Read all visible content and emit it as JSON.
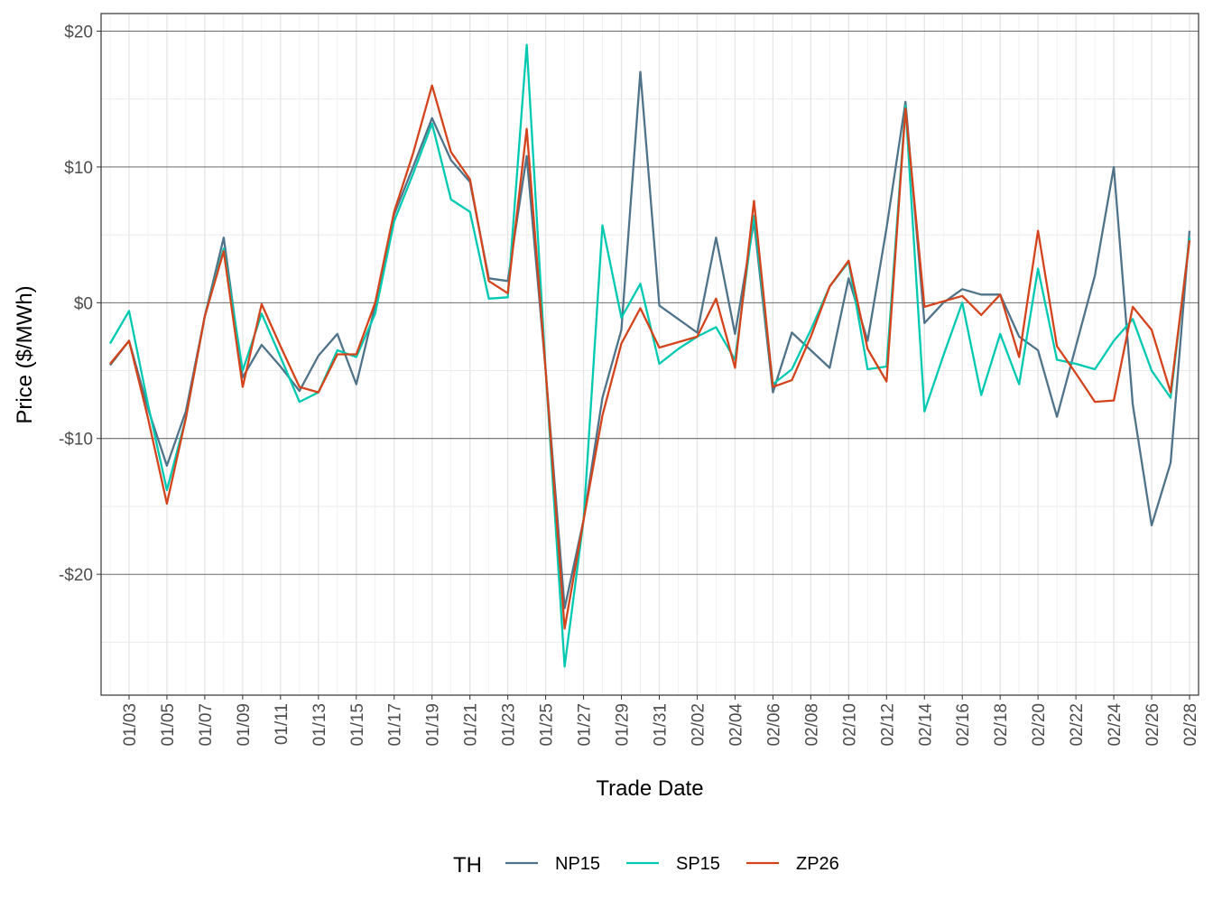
{
  "chart_data": {
    "type": "line",
    "title": "",
    "xlabel": "Trade Date",
    "ylabel": "Price ($/MWh)",
    "ylim": [
      -28.9,
      21.3
    ],
    "y_ticks": [
      20,
      10,
      0,
      -10,
      -20
    ],
    "y_tick_labels": [
      "$20",
      "$10",
      "$0",
      "-$10",
      "-$20"
    ],
    "grid": true,
    "legend": {
      "title": "TH",
      "position": "bottom"
    },
    "x": [
      "01/02",
      "01/03",
      "01/04",
      "01/05",
      "01/06",
      "01/07",
      "01/08",
      "01/09",
      "01/10",
      "01/11",
      "01/12",
      "01/13",
      "01/14",
      "01/15",
      "01/16",
      "01/17",
      "01/18",
      "01/19",
      "01/20",
      "01/21",
      "01/22",
      "01/23",
      "01/24",
      "01/25",
      "01/26",
      "01/27",
      "01/28",
      "01/29",
      "01/30",
      "01/31",
      "02/01",
      "02/02",
      "02/03",
      "02/04",
      "02/05",
      "02/06",
      "02/07",
      "02/08",
      "02/09",
      "02/10",
      "02/11",
      "02/12",
      "02/13",
      "02/14",
      "02/15",
      "02/16",
      "02/17",
      "02/18",
      "02/19",
      "02/20",
      "02/21",
      "02/22",
      "02/23",
      "02/24",
      "02/25",
      "02/26",
      "02/27",
      "02/28"
    ],
    "x_tick_labels": [
      "01/03",
      "01/05",
      "01/07",
      "01/09",
      "01/11",
      "01/13",
      "01/15",
      "01/17",
      "01/19",
      "01/21",
      "01/23",
      "01/25",
      "01/27",
      "01/29",
      "01/31",
      "02/02",
      "02/04",
      "02/06",
      "02/08",
      "02/10",
      "02/12",
      "02/14",
      "02/16",
      "02/18",
      "02/20",
      "02/22",
      "02/24",
      "02/26",
      "02/28"
    ],
    "series": [
      {
        "name": "NP15",
        "color": "#4f7388",
        "values": [
          -4.6,
          -2.8,
          -7.8,
          -12.0,
          -8.0,
          -1.0,
          4.8,
          -5.5,
          -3.1,
          -4.7,
          -6.5,
          -3.9,
          -2.3,
          -6.0,
          -0.2,
          6.5,
          10.0,
          13.6,
          10.5,
          8.9,
          1.8,
          1.6,
          10.8,
          -5.0,
          -22.5,
          -16.0,
          -7.0,
          -2.0,
          17.0,
          -0.2,
          -1.2,
          -2.2,
          4.8,
          -2.3,
          6.0,
          -6.6,
          -2.2,
          -3.5,
          -4.8,
          1.8,
          -2.8,
          5.5,
          14.8,
          -1.5,
          0.0,
          1.0,
          0.6,
          0.6,
          -2.5,
          -3.5,
          -8.4,
          -3.2,
          2.0,
          10.0,
          -7.5,
          -16.4,
          -11.8,
          5.3
        ]
      },
      {
        "name": "SP15",
        "color": "#00c9b1",
        "values": [
          -3.0,
          -0.6,
          -7.5,
          -13.8,
          -8.5,
          -1.0,
          4.0,
          -5.0,
          -0.8,
          -4.0,
          -7.3,
          -6.6,
          -3.5,
          -4.0,
          -0.8,
          6.0,
          9.5,
          13.2,
          7.6,
          6.7,
          0.3,
          0.4,
          19.0,
          -5.0,
          -26.8,
          -16.0,
          5.7,
          -1.1,
          1.4,
          -4.5,
          -3.4,
          -2.5,
          -1.8,
          -4.2,
          6.4,
          -6.0,
          -4.9,
          -2.0,
          1.2,
          3.0,
          -4.9,
          -4.7,
          14.5,
          -8.0,
          -3.9,
          0.0,
          -6.8,
          -2.3,
          -6.0,
          2.5,
          -4.2,
          -4.5,
          -4.9,
          -2.8,
          -1.2,
          -5.0,
          -7.0,
          4.8
        ]
      },
      {
        "name": "ZP26",
        "color": "#d4441c",
        "values": [
          -4.5,
          -2.8,
          -8.5,
          -14.8,
          -8.5,
          -1.0,
          3.8,
          -6.2,
          -0.1,
          -3.2,
          -6.2,
          -6.6,
          -3.8,
          -3.8,
          0.0,
          6.7,
          11.0,
          16.0,
          11.1,
          9.1,
          1.6,
          0.7,
          12.8,
          -5.0,
          -24.0,
          -16.0,
          -8.3,
          -3.0,
          -0.4,
          -3.3,
          -2.9,
          -2.5,
          0.3,
          -4.8,
          7.5,
          -6.2,
          -5.7,
          -2.5,
          1.2,
          3.1,
          -3.4,
          -5.8,
          14.3,
          -0.3,
          0.1,
          0.5,
          -0.9,
          0.6,
          -4.0,
          5.3,
          -3.2,
          -5.2,
          -7.3,
          -7.2,
          -0.3,
          -2.0,
          -6.6,
          4.6
        ]
      }
    ]
  }
}
